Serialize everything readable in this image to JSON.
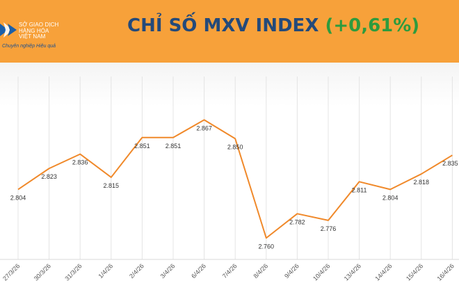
{
  "header": {
    "logo_lines": [
      "SỞ GIAO DỊCH",
      "HÀNG HÓA",
      "VIỆT NAM"
    ],
    "slogan": "Chuyên nghiệp Hiệu quả",
    "title_main": "CHỈ SỐ MXV INDEX",
    "title_change": "(+0,61%)"
  },
  "colors": {
    "header_bg": "#f7a13a",
    "title": "#244a7a",
    "change_positive": "#2e9b3e",
    "line": "#f0892a"
  },
  "chart_data": {
    "type": "line",
    "title": "CHỈ SỐ MXV INDEX (+0,61%)",
    "categories": [
      "27/3/26",
      "30/3/26",
      "31/3/26",
      "1/4/26",
      "2/4/26",
      "3/4/26",
      "6/4/26",
      "7/4/26",
      "8/4/26",
      "9/4/26",
      "10/4/26",
      "13/4/26",
      "14/4/26",
      "15/4/26",
      "16/4/26"
    ],
    "values": [
      2804,
      2823,
      2836,
      2815,
      2851,
      2851,
      2867,
      2850,
      2760,
      2782,
      2776,
      2811,
      2804,
      2818,
      2835
    ],
    "value_labels": [
      "2.804",
      "2.823",
      "2.836",
      "2.815",
      "2.851",
      "2.851",
      "2.867",
      "2.850",
      "2.760",
      "2.782",
      "2.776",
      "2.811",
      "2.804",
      "2.818",
      "2.835"
    ],
    "ylim": [
      2740,
      2900
    ],
    "grid": "vertical",
    "legend": "none"
  }
}
